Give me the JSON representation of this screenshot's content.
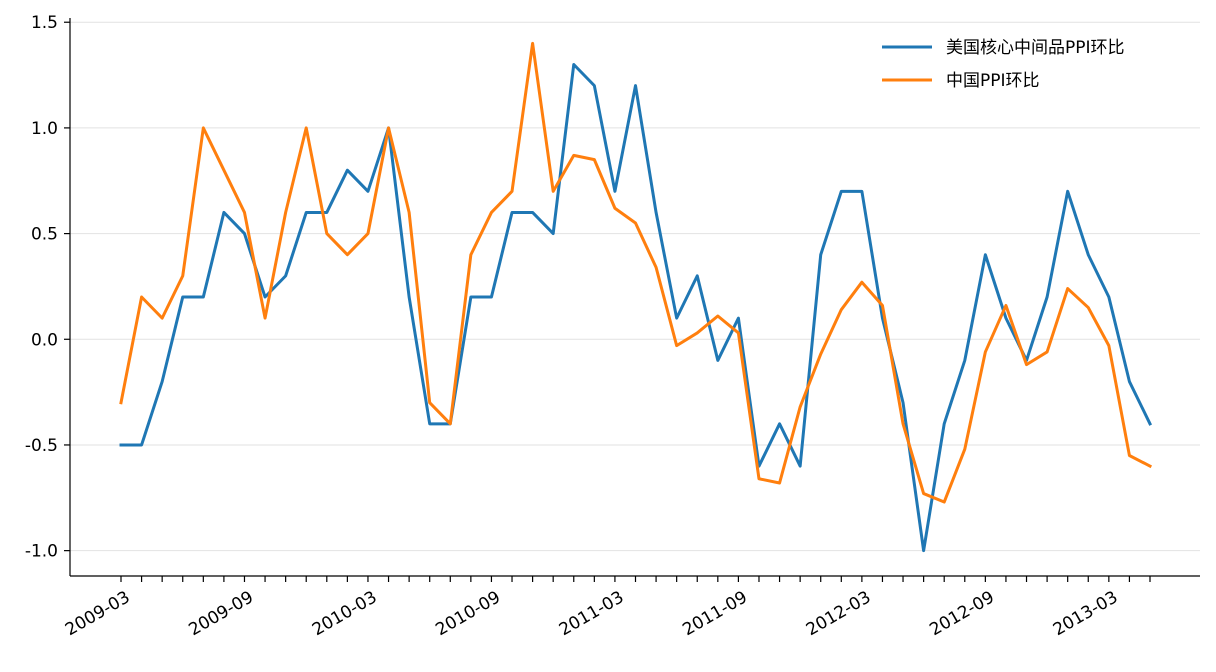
{
  "chart_data": {
    "type": "line",
    "x": [
      "2009-03",
      "2009-04",
      "2009-05",
      "2009-06",
      "2009-07",
      "2009-08",
      "2009-09",
      "2009-10",
      "2009-11",
      "2009-12",
      "2010-01",
      "2010-02",
      "2010-03",
      "2010-04",
      "2010-05",
      "2010-06",
      "2010-07",
      "2010-08",
      "2010-09",
      "2010-10",
      "2010-11",
      "2010-12",
      "2011-01",
      "2011-02",
      "2011-03",
      "2011-04",
      "2011-05",
      "2011-06",
      "2011-07",
      "2011-08",
      "2011-09",
      "2011-10",
      "2011-11",
      "2011-12",
      "2012-01",
      "2012-02",
      "2012-03",
      "2012-04",
      "2012-05",
      "2012-06",
      "2012-07",
      "2012-08",
      "2012-09",
      "2012-10",
      "2012-11",
      "2012-12",
      "2013-01",
      "2013-02",
      "2013-03",
      "2013-04",
      "2013-05"
    ],
    "x_tick_labels": [
      "2009-03",
      "2009-09",
      "2010-03",
      "2010-09",
      "2011-03",
      "2011-09",
      "2012-03",
      "2012-09",
      "2013-03"
    ],
    "series": [
      {
        "name": "美国核心中间品PPI环比",
        "color": "#1f77b4",
        "values": [
          -0.5,
          -0.5,
          -0.2,
          0.2,
          0.2,
          0.6,
          0.5,
          0.2,
          0.3,
          0.6,
          0.6,
          0.8,
          0.7,
          1.0,
          0.2,
          -0.4,
          -0.4,
          0.2,
          0.2,
          0.6,
          0.6,
          0.5,
          1.3,
          1.2,
          0.7,
          1.2,
          0.6,
          0.1,
          0.3,
          -0.1,
          0.1,
          -0.6,
          -0.4,
          -0.6,
          0.4,
          0.7,
          0.7,
          0.1,
          -0.3,
          -1.0,
          -0.4,
          -0.1,
          0.4,
          0.1,
          -0.1,
          0.2,
          0.7,
          0.4,
          0.2,
          -0.2,
          -0.4
        ]
      },
      {
        "name": "中国PPI环比",
        "color": "#ff7f0e",
        "values": [
          -0.3,
          0.2,
          0.1,
          0.3,
          1.0,
          0.8,
          0.6,
          0.1,
          0.6,
          1.0,
          0.5,
          0.4,
          0.5,
          1.0,
          0.6,
          -0.3,
          -0.4,
          0.4,
          0.6,
          0.7,
          1.4,
          0.7,
          0.87,
          0.85,
          0.62,
          0.55,
          0.34,
          -0.03,
          0.03,
          0.11,
          0.03,
          -0.66,
          -0.68,
          -0.32,
          -0.07,
          0.14,
          0.27,
          0.16,
          -0.4,
          -0.73,
          -0.77,
          -0.52,
          -0.06,
          0.16,
          -0.12,
          -0.06,
          0.24,
          0.15,
          -0.03,
          -0.55,
          -0.6
        ]
      }
    ],
    "y_ticks": [
      -1.0,
      -0.5,
      0.0,
      0.5,
      1.0,
      1.5
    ],
    "y_tick_labels": [
      "-1.0",
      "-0.5",
      "0.0",
      "0.5",
      "1.0",
      "1.5"
    ],
    "ylim": [
      -1.12,
      1.52
    ],
    "title": "",
    "xlabel": "",
    "ylabel": "",
    "grid": "horizontal",
    "legend": "top-right"
  }
}
